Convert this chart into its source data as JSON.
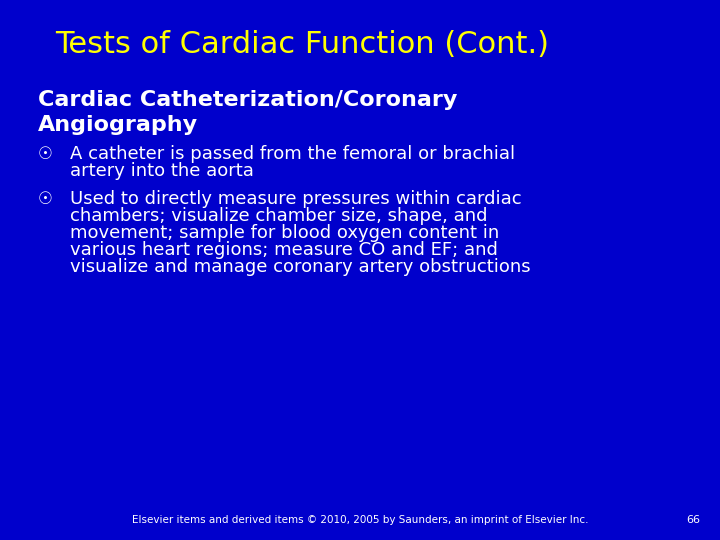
{
  "background_color": "#0000cc",
  "title": "Tests of Cardiac Function (Cont.)",
  "title_color": "#ffff00",
  "title_fontsize": 22,
  "subtitle_line1": "Cardiac Catheterization/Coronary",
  "subtitle_line2": "Angiography",
  "subtitle_color": "#ffffff",
  "subtitle_fontsize": 16,
  "bullet_color": "#ffffff",
  "bullet_fontsize": 13,
  "bullet1_line1": "A catheter is passed from the femoral or brachial",
  "bullet1_line2": "artery into the aorta",
  "bullet2_line1": "Used to directly measure pressures within cardiac",
  "bullet2_line2": "chambers; visualize chamber size, shape, and",
  "bullet2_line3": "movement; sample for blood oxygen content in",
  "bullet2_line4": "various heart regions; measure CO and EF; and",
  "bullet2_line5": "visualize and manage coronary artery obstructions",
  "footer": "Elsevier items and derived items © 2010, 2005 by Saunders, an imprint of Elsevier Inc.",
  "footer_color": "#ffffff",
  "footer_fontsize": 7.5,
  "page_number": "66",
  "page_number_color": "#ffffff",
  "page_number_fontsize": 8
}
